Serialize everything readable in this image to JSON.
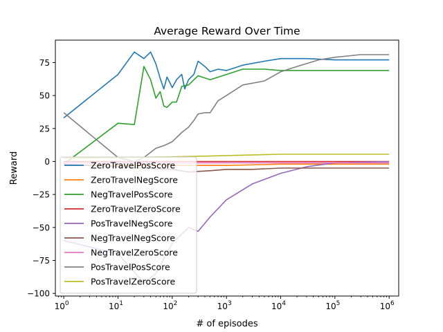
{
  "chart_data": {
    "type": "line",
    "title": "Average Reward Over Time",
    "xlabel": "# of episodes",
    "ylabel": "Reward",
    "xscale": "log",
    "xlim": [
      0.7,
      1500000
    ],
    "ylim": [
      -102,
      92
    ],
    "grid": false,
    "legend_position": "lower-left",
    "x_ticks": [
      {
        "value": 1,
        "label": "10^0"
      },
      {
        "value": 10,
        "label": "10^1"
      },
      {
        "value": 100,
        "label": "10^2"
      },
      {
        "value": 1000,
        "label": "10^3"
      },
      {
        "value": 10000,
        "label": "10^4"
      },
      {
        "value": 100000,
        "label": "10^5"
      },
      {
        "value": 1000000,
        "label": "10^6"
      }
    ],
    "y_ticks": [
      75,
      50,
      25,
      0,
      -25,
      -50,
      -75,
      -100
    ],
    "y_tick_labels": [
      "75",
      "50",
      "25",
      "0",
      "−25",
      "−50",
      "−75",
      "−100"
    ],
    "series": [
      {
        "name": "ZeroTravelPosScore",
        "color": "#1f77b4",
        "x": [
          1,
          10,
          20,
          30,
          40,
          50,
          60,
          70,
          80,
          90,
          100,
          120,
          150,
          170,
          200,
          250,
          300,
          400,
          500,
          700,
          1000,
          2000,
          5000,
          10000,
          30000,
          100000,
          300000,
          1000000
        ],
        "y": [
          33,
          66,
          83,
          78,
          83,
          74,
          63,
          55,
          64,
          60,
          56,
          62,
          66,
          55,
          62,
          66,
          76,
          72,
          68,
          70,
          69,
          73,
          76,
          78,
          78,
          77,
          77,
          77
        ]
      },
      {
        "name": "ZeroTravelNegScore",
        "color": "#ff7f0e",
        "x": [
          1,
          10,
          100,
          1000,
          10000,
          100000,
          1000000
        ],
        "y": [
          -3,
          -3,
          -3,
          -3,
          -2,
          -2,
          -2
        ]
      },
      {
        "name": "NegTravelPosScore",
        "color": "#2ca02c",
        "x": [
          1,
          10,
          20,
          30,
          40,
          50,
          60,
          70,
          80,
          100,
          120,
          150,
          200,
          300,
          500,
          1000,
          2000,
          5000,
          10000,
          100000,
          1000000
        ],
        "y": [
          -2,
          29,
          28,
          72,
          62,
          48,
          53,
          42,
          41,
          45,
          45,
          57,
          58,
          65,
          62,
          66,
          70,
          70,
          69,
          69,
          69
        ]
      },
      {
        "name": "ZeroTravelZeroScore",
        "color": "#d62728",
        "x": [
          1,
          10,
          100,
          1000,
          10000,
          100000,
          1000000
        ],
        "y": [
          0,
          0,
          0,
          0,
          0,
          0,
          0
        ]
      },
      {
        "name": "PosTravelNegScore",
        "color": "#9467bd",
        "x": [
          1,
          10,
          30,
          50,
          100,
          200,
          300,
          500,
          1000,
          3000,
          10000,
          30000,
          100000,
          1000000
        ],
        "y": [
          -60,
          -70,
          -92,
          -85,
          -62,
          -50,
          -53,
          -42,
          -29,
          -17,
          -9,
          -4,
          -1,
          0
        ]
      },
      {
        "name": "NegTravelNegScore",
        "color": "#8c564b",
        "x": [
          1,
          100,
          200,
          500,
          1000,
          3000,
          10000,
          100000,
          1000000
        ],
        "y": [
          -2,
          -6,
          -8,
          -7,
          -6,
          -6,
          -5,
          -5,
          -5
        ]
      },
      {
        "name": "NegTravelZeroScore",
        "color": "#e377c2",
        "x": [
          1,
          10,
          100,
          1000,
          10000,
          100000,
          1000000
        ],
        "y": [
          -1,
          -1,
          -1,
          -1,
          -1,
          -1,
          -1
        ]
      },
      {
        "name": "PosTravelPosScore",
        "color": "#7f7f7f",
        "x": [
          1,
          10,
          20,
          30,
          50,
          70,
          100,
          150,
          200,
          250,
          300,
          400,
          500,
          700,
          1000,
          2000,
          5000,
          10000,
          20000,
          50000,
          100000,
          300000,
          1000000
        ],
        "y": [
          37,
          3,
          0,
          3,
          10,
          12,
          15,
          22,
          26,
          31,
          36,
          37,
          37,
          46,
          50,
          58,
          61,
          68,
          72,
          77,
          79,
          81,
          81
        ]
      },
      {
        "name": "PosTravelZeroScore",
        "color": "#bcbd22",
        "x": [
          1,
          10,
          100,
          1000,
          10000,
          100000,
          1000000
        ],
        "y": [
          2.5,
          3,
          3.5,
          4.5,
          5.5,
          5.5,
          5.5
        ]
      }
    ]
  }
}
